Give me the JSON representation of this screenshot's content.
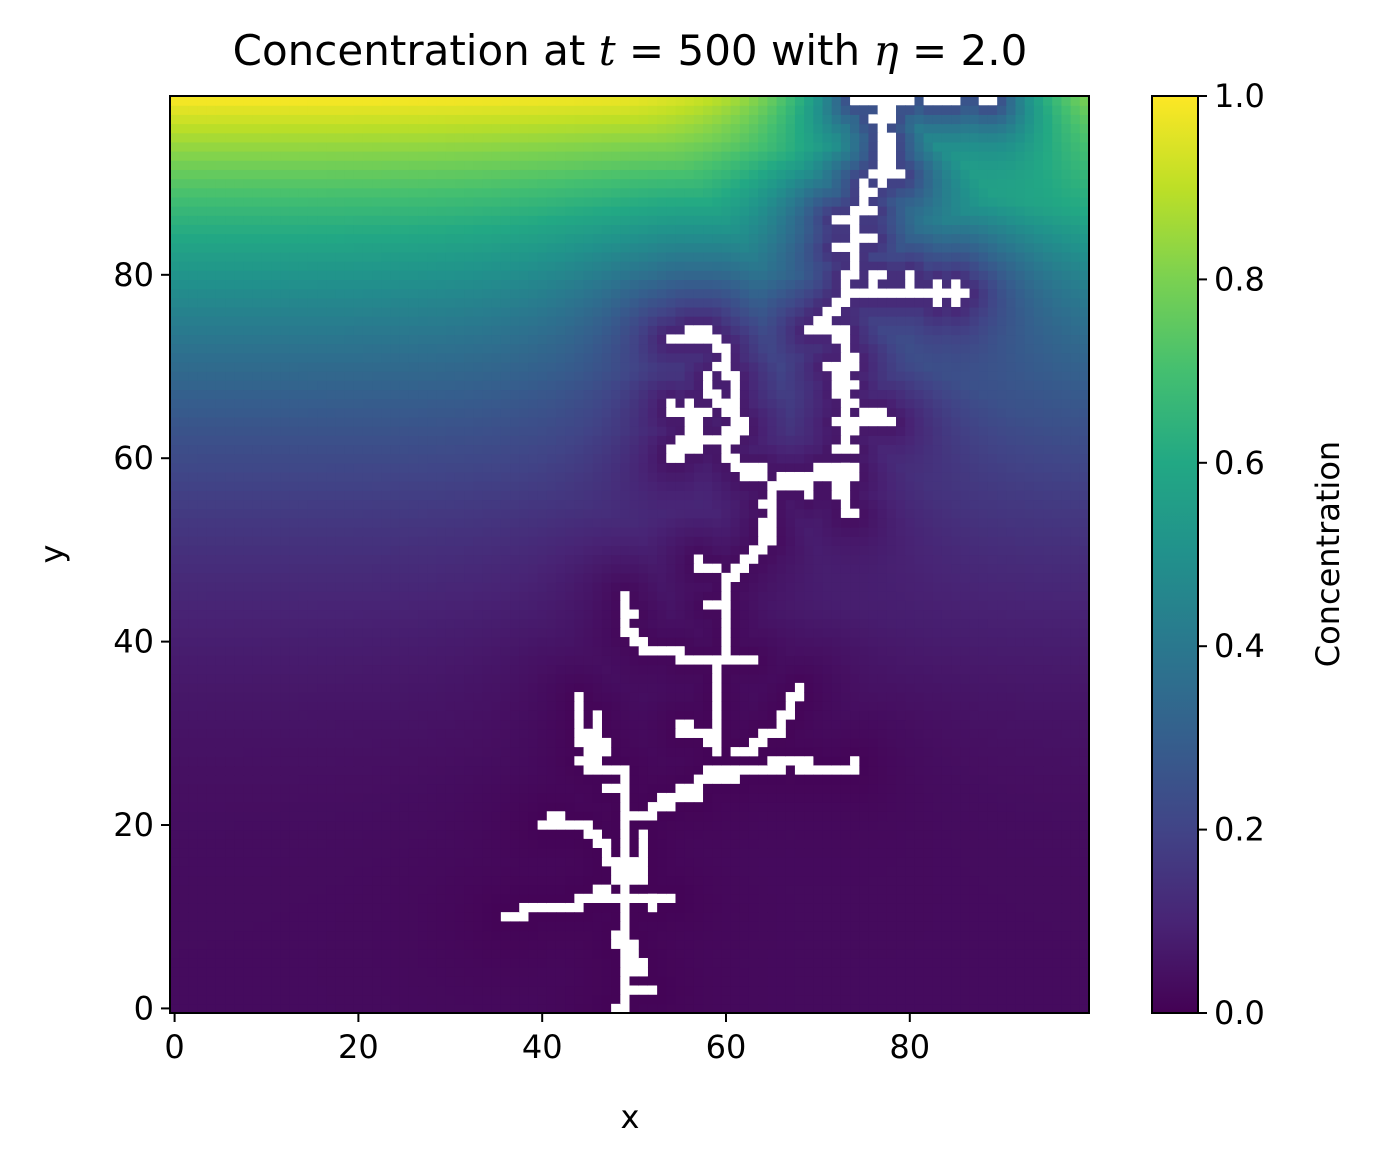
{
  "title": {
    "prefix": "Concentration at ",
    "t_symbol": "t",
    "t_eq": " = ",
    "t_value": "500",
    "mid": " with ",
    "eta_symbol": "η",
    "eta_eq": " = ",
    "eta_value": "2.0"
  },
  "chart_data": {
    "type": "heatmap",
    "title": "Concentration at t = 500 with η = 2.0",
    "xlabel": "x",
    "ylabel": "y",
    "grid_size": [
      100,
      100
    ],
    "xlim": [
      -0.5,
      99.5
    ],
    "ylim": [
      -0.5,
      99.5
    ],
    "xticks": [
      0,
      20,
      40,
      60,
      80
    ],
    "yticks": [
      0,
      20,
      40,
      60,
      80
    ],
    "colormap": "viridis",
    "colorbar": {
      "label": "Concentration",
      "range": [
        0.0,
        1.0
      ],
      "ticks": [
        "0.0",
        "0.2",
        "0.4",
        "0.6",
        "0.8",
        "1.0"
      ]
    },
    "boundary_condition": {
      "y_top": 1.0,
      "y_bottom": 0.0
    },
    "cluster_color": "#ffffff",
    "cluster_cells": [
      [
        48,
        0
      ],
      [
        49,
        0
      ],
      [
        49,
        1
      ],
      [
        49,
        2
      ],
      [
        50,
        2
      ],
      [
        51,
        2
      ],
      [
        52,
        2
      ],
      [
        49,
        3
      ],
      [
        49,
        4
      ],
      [
        50,
        4
      ],
      [
        51,
        4
      ],
      [
        49,
        5
      ],
      [
        50,
        5
      ],
      [
        51,
        5
      ],
      [
        49,
        6
      ],
      [
        50,
        6
      ],
      [
        48,
        7
      ],
      [
        49,
        7
      ],
      [
        50,
        7
      ],
      [
        48,
        8
      ],
      [
        49,
        8
      ],
      [
        49,
        9
      ],
      [
        49,
        10
      ],
      [
        49,
        11
      ],
      [
        49,
        12
      ],
      [
        49,
        13
      ],
      [
        52,
        11
      ],
      [
        52,
        12
      ],
      [
        36,
        10
      ],
      [
        37,
        10
      ],
      [
        38,
        10
      ],
      [
        38,
        11
      ],
      [
        39,
        11
      ],
      [
        40,
        11
      ],
      [
        41,
        11
      ],
      [
        42,
        11
      ],
      [
        43,
        11
      ],
      [
        44,
        11
      ],
      [
        44,
        12
      ],
      [
        45,
        12
      ],
      [
        46,
        12
      ],
      [
        47,
        12
      ],
      [
        48,
        12
      ],
      [
        49,
        12
      ],
      [
        50,
        12
      ],
      [
        51,
        12
      ],
      [
        52,
        12
      ],
      [
        53,
        12
      ],
      [
        54,
        12
      ],
      [
        46,
        13
      ],
      [
        47,
        13
      ],
      [
        48,
        14
      ],
      [
        49,
        14
      ],
      [
        50,
        14
      ],
      [
        51,
        14
      ],
      [
        48,
        15
      ],
      [
        49,
        15
      ],
      [
        50,
        15
      ],
      [
        51,
        15
      ],
      [
        47,
        16
      ],
      [
        48,
        16
      ],
      [
        49,
        16
      ],
      [
        50,
        16
      ],
      [
        51,
        16
      ],
      [
        47,
        17
      ],
      [
        49,
        17
      ],
      [
        51,
        17
      ],
      [
        46,
        18
      ],
      [
        47,
        18
      ],
      [
        49,
        18
      ],
      [
        51,
        18
      ],
      [
        45,
        19
      ],
      [
        46,
        19
      ],
      [
        49,
        19
      ],
      [
        51,
        19
      ],
      [
        44,
        20
      ],
      [
        45,
        20
      ],
      [
        49,
        20
      ],
      [
        40,
        20
      ],
      [
        41,
        20
      ],
      [
        42,
        20
      ],
      [
        43,
        20
      ],
      [
        41,
        21
      ],
      [
        42,
        21
      ],
      [
        49,
        21
      ],
      [
        50,
        21
      ],
      [
        51,
        21
      ],
      [
        52,
        21
      ],
      [
        49,
        22
      ],
      [
        52,
        22
      ],
      [
        53,
        22
      ],
      [
        54,
        22
      ],
      [
        49,
        23
      ],
      [
        53,
        23
      ],
      [
        54,
        23
      ],
      [
        55,
        23
      ],
      [
        56,
        23
      ],
      [
        57,
        23
      ],
      [
        47,
        24
      ],
      [
        48,
        24
      ],
      [
        49,
        24
      ],
      [
        55,
        24
      ],
      [
        56,
        24
      ],
      [
        57,
        24
      ],
      [
        57,
        25
      ],
      [
        58,
        25
      ],
      [
        59,
        25
      ],
      [
        60,
        25
      ],
      [
        61,
        25
      ],
      [
        49,
        25
      ],
      [
        58,
        26
      ],
      [
        59,
        26
      ],
      [
        60,
        26
      ],
      [
        61,
        26
      ],
      [
        62,
        26
      ],
      [
        63,
        26
      ],
      [
        64,
        26
      ],
      [
        65,
        26
      ],
      [
        66,
        26
      ],
      [
        68,
        26
      ],
      [
        69,
        26
      ],
      [
        70,
        26
      ],
      [
        71,
        26
      ],
      [
        72,
        26
      ],
      [
        73,
        26
      ],
      [
        74,
        26
      ],
      [
        74,
        27
      ],
      [
        68,
        27
      ],
      [
        69,
        27
      ],
      [
        65,
        27
      ],
      [
        66,
        27
      ],
      [
        67,
        27
      ],
      [
        49,
        26
      ],
      [
        48,
        26
      ],
      [
        47,
        26
      ],
      [
        46,
        26
      ],
      [
        45,
        26
      ],
      [
        46,
        27
      ],
      [
        45,
        27
      ],
      [
        44,
        27
      ],
      [
        46,
        28
      ],
      [
        47,
        28
      ],
      [
        45,
        28
      ],
      [
        44,
        29
      ],
      [
        45,
        29
      ],
      [
        46,
        29
      ],
      [
        47,
        29
      ],
      [
        44,
        30
      ],
      [
        45,
        30
      ],
      [
        46,
        30
      ],
      [
        44,
        31
      ],
      [
        44,
        32
      ],
      [
        46,
        31
      ],
      [
        46,
        32
      ],
      [
        44,
        33
      ],
      [
        44,
        34
      ],
      [
        59,
        28
      ],
      [
        59,
        29
      ],
      [
        58,
        29
      ],
      [
        58,
        30
      ],
      [
        57,
        30
      ],
      [
        56,
        30
      ],
      [
        55,
        30
      ],
      [
        55,
        31
      ],
      [
        56,
        31
      ],
      [
        59,
        30
      ],
      [
        59,
        31
      ],
      [
        59,
        32
      ],
      [
        59,
        33
      ],
      [
        59,
        34
      ],
      [
        59,
        35
      ],
      [
        59,
        36
      ],
      [
        59,
        37
      ],
      [
        61,
        28
      ],
      [
        62,
        28
      ],
      [
        63,
        28
      ],
      [
        63,
        29
      ],
      [
        64,
        29
      ],
      [
        64,
        30
      ],
      [
        65,
        30
      ],
      [
        66,
        30
      ],
      [
        66,
        31
      ],
      [
        66,
        32
      ],
      [
        67,
        32
      ],
      [
        67,
        33
      ],
      [
        67,
        34
      ],
      [
        68,
        34
      ],
      [
        68,
        35
      ],
      [
        59,
        38
      ],
      [
        58,
        38
      ],
      [
        57,
        38
      ],
      [
        56,
        38
      ],
      [
        55,
        38
      ],
      [
        60,
        38
      ],
      [
        61,
        38
      ],
      [
        62,
        38
      ],
      [
        63,
        38
      ],
      [
        54,
        39
      ],
      [
        55,
        39
      ],
      [
        53,
        39
      ],
      [
        52,
        39
      ],
      [
        51,
        39
      ],
      [
        50,
        40
      ],
      [
        51,
        40
      ],
      [
        49,
        41
      ],
      [
        50,
        41
      ],
      [
        49,
        42
      ],
      [
        49,
        43
      ],
      [
        50,
        43
      ],
      [
        49,
        44
      ],
      [
        49,
        45
      ],
      [
        60,
        39
      ],
      [
        60,
        40
      ],
      [
        60,
        41
      ],
      [
        60,
        42
      ],
      [
        60,
        43
      ],
      [
        60,
        44
      ],
      [
        60,
        45
      ],
      [
        59,
        44
      ],
      [
        58,
        44
      ],
      [
        60,
        46
      ],
      [
        60,
        47
      ],
      [
        61,
        47
      ],
      [
        61,
        48
      ],
      [
        59,
        48
      ],
      [
        58,
        48
      ],
      [
        57,
        48
      ],
      [
        57,
        49
      ],
      [
        62,
        48
      ],
      [
        62,
        49
      ],
      [
        63,
        49
      ],
      [
        63,
        50
      ],
      [
        64,
        50
      ],
      [
        64,
        51
      ],
      [
        65,
        51
      ],
      [
        65,
        52
      ],
      [
        64,
        52
      ],
      [
        64,
        53
      ],
      [
        65,
        53
      ],
      [
        65,
        54
      ],
      [
        64,
        55
      ],
      [
        65,
        55
      ],
      [
        65,
        56
      ],
      [
        65,
        57
      ],
      [
        66,
        57
      ],
      [
        67,
        57
      ],
      [
        68,
        57
      ],
      [
        69,
        57
      ],
      [
        69,
        56
      ],
      [
        66,
        58
      ],
      [
        67,
        58
      ],
      [
        68,
        58
      ],
      [
        69,
        58
      ],
      [
        70,
        58
      ],
      [
        71,
        58
      ],
      [
        72,
        58
      ],
      [
        70,
        59
      ],
      [
        71,
        59
      ],
      [
        72,
        59
      ],
      [
        73,
        59
      ],
      [
        74,
        59
      ],
      [
        64,
        58
      ],
      [
        63,
        58
      ],
      [
        62,
        58
      ],
      [
        61,
        59
      ],
      [
        62,
        59
      ],
      [
        63,
        59
      ],
      [
        64,
        59
      ],
      [
        60,
        60
      ],
      [
        61,
        60
      ],
      [
        60,
        61
      ],
      [
        60,
        62
      ],
      [
        61,
        62
      ],
      [
        60,
        63
      ],
      [
        61,
        63
      ],
      [
        62,
        63
      ],
      [
        62,
        64
      ],
      [
        61,
        64
      ],
      [
        60,
        65
      ],
      [
        61,
        65
      ],
      [
        60,
        66
      ],
      [
        61,
        66
      ],
      [
        61,
        67
      ],
      [
        61,
        68
      ],
      [
        60,
        69
      ],
      [
        61,
        69
      ],
      [
        60,
        70
      ],
      [
        60,
        71
      ],
      [
        59,
        72
      ],
      [
        60,
        72
      ],
      [
        57,
        73
      ],
      [
        58,
        73
      ],
      [
        59,
        73
      ],
      [
        56,
        74
      ],
      [
        57,
        74
      ],
      [
        58,
        74
      ],
      [
        54,
        73
      ],
      [
        55,
        73
      ],
      [
        56,
        73
      ],
      [
        59,
        70
      ],
      [
        58,
        69
      ],
      [
        58,
        68
      ],
      [
        58,
        67
      ],
      [
        59,
        67
      ],
      [
        59,
        66
      ],
      [
        58,
        65
      ],
      [
        57,
        65
      ],
      [
        56,
        65
      ],
      [
        55,
        65
      ],
      [
        56,
        66
      ],
      [
        56,
        64
      ],
      [
        57,
        64
      ],
      [
        56,
        63
      ],
      [
        57,
        63
      ],
      [
        55,
        62
      ],
      [
        56,
        62
      ],
      [
        57,
        62
      ],
      [
        58,
        62
      ],
      [
        59,
        62
      ],
      [
        55,
        61
      ],
      [
        56,
        61
      ],
      [
        57,
        61
      ],
      [
        54,
        60
      ],
      [
        55,
        60
      ],
      [
        54,
        61
      ],
      [
        56,
        66
      ],
      [
        54,
        66
      ],
      [
        54,
        65
      ],
      [
        73,
        59
      ],
      [
        74,
        58
      ],
      [
        73,
        58
      ],
      [
        73,
        57
      ],
      [
        72,
        57
      ],
      [
        72,
        56
      ],
      [
        73,
        56
      ],
      [
        73,
        55
      ],
      [
        73,
        54
      ],
      [
        74,
        54
      ],
      [
        72,
        61
      ],
      [
        73,
        61
      ],
      [
        74,
        61
      ],
      [
        73,
        62
      ],
      [
        73,
        63
      ],
      [
        74,
        63
      ],
      [
        72,
        64
      ],
      [
        73,
        64
      ],
      [
        74,
        64
      ],
      [
        75,
        64
      ],
      [
        76,
        64
      ],
      [
        77,
        64
      ],
      [
        78,
        64
      ],
      [
        77,
        65
      ],
      [
        76,
        65
      ],
      [
        75,
        65
      ],
      [
        73,
        65
      ],
      [
        73,
        66
      ],
      [
        74,
        66
      ],
      [
        73,
        67
      ],
      [
        72,
        67
      ],
      [
        72,
        68
      ],
      [
        73,
        68
      ],
      [
        74,
        68
      ],
      [
        72,
        69
      ],
      [
        73,
        69
      ],
      [
        71,
        70
      ],
      [
        72,
        70
      ],
      [
        73,
        70
      ],
      [
        74,
        70
      ],
      [
        74,
        71
      ],
      [
        73,
        71
      ],
      [
        73,
        72
      ],
      [
        73,
        73
      ],
      [
        72,
        73
      ],
      [
        73,
        74
      ],
      [
        72,
        74
      ],
      [
        71,
        74
      ],
      [
        70,
        74
      ],
      [
        69,
        74
      ],
      [
        70,
        75
      ],
      [
        71,
        75
      ],
      [
        71,
        76
      ],
      [
        72,
        76
      ],
      [
        72,
        77
      ],
      [
        73,
        77
      ],
      [
        73,
        78
      ],
      [
        74,
        78
      ],
      [
        75,
        78
      ],
      [
        76,
        78
      ],
      [
        77,
        78
      ],
      [
        78,
        78
      ],
      [
        79,
        78
      ],
      [
        80,
        78
      ],
      [
        81,
        78
      ],
      [
        82,
        78
      ],
      [
        83,
        78
      ],
      [
        84,
        78
      ],
      [
        85,
        78
      ],
      [
        86,
        78
      ],
      [
        85,
        77
      ],
      [
        85,
        79
      ],
      [
        83,
        77
      ],
      [
        83,
        79
      ],
      [
        80,
        79
      ],
      [
        80,
        80
      ],
      [
        76,
        79
      ],
      [
        76,
        80
      ],
      [
        77,
        80
      ],
      [
        73,
        79
      ],
      [
        73,
        80
      ],
      [
        74,
        80
      ],
      [
        74,
        81
      ],
      [
        74,
        82
      ],
      [
        74,
        83
      ],
      [
        73,
        83
      ],
      [
        72,
        83
      ],
      [
        74,
        84
      ],
      [
        75,
        84
      ],
      [
        76,
        84
      ],
      [
        74,
        85
      ],
      [
        74,
        86
      ],
      [
        73,
        86
      ],
      [
        72,
        86
      ],
      [
        74,
        87
      ],
      [
        75,
        87
      ],
      [
        76,
        87
      ],
      [
        75,
        88
      ],
      [
        75,
        89
      ],
      [
        75,
        90
      ],
      [
        76,
        89
      ],
      [
        77,
        90
      ],
      [
        77,
        91
      ],
      [
        77,
        92
      ],
      [
        76,
        91
      ],
      [
        78,
        91
      ],
      [
        79,
        91
      ],
      [
        78,
        92
      ],
      [
        77,
        93
      ],
      [
        78,
        93
      ],
      [
        77,
        94
      ],
      [
        78,
        94
      ],
      [
        77,
        95
      ],
      [
        78,
        95
      ],
      [
        77,
        96
      ],
      [
        77,
        97
      ],
      [
        76,
        97
      ],
      [
        78,
        97
      ],
      [
        77,
        98
      ],
      [
        78,
        98
      ],
      [
        77,
        99
      ],
      [
        74,
        99
      ],
      [
        75,
        99
      ],
      [
        76,
        99
      ],
      [
        78,
        99
      ],
      [
        79,
        99
      ],
      [
        80,
        99
      ],
      [
        82,
        99
      ],
      [
        83,
        99
      ],
      [
        84,
        99
      ],
      [
        85,
        99
      ],
      [
        88,
        99
      ],
      [
        89,
        99
      ]
    ]
  }
}
